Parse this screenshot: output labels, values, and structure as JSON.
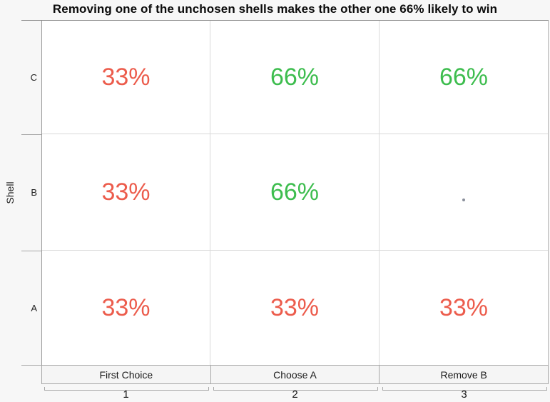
{
  "title": "Removing one of the unchosen shells makes the other one 66% likely to win",
  "y_axis": {
    "title": "Shell",
    "categories": [
      "C",
      "B",
      "A"
    ]
  },
  "x_axis": {
    "ticks": [
      "1",
      "2",
      "3"
    ]
  },
  "columns": [
    {
      "label": "First Choice"
    },
    {
      "label": "Choose A"
    },
    {
      "label": "Remove B"
    }
  ],
  "cells": [
    [
      {
        "label": "33%",
        "state": "lose"
      },
      {
        "label": "66%",
        "state": "win"
      },
      {
        "label": "66%",
        "state": "win"
      }
    ],
    [
      {
        "label": "33%",
        "state": "lose"
      },
      {
        "label": "66%",
        "state": "win"
      },
      {
        "label": "",
        "state": "dot"
      }
    ],
    [
      {
        "label": "33%",
        "state": "lose"
      },
      {
        "label": "33%",
        "state": "lose"
      },
      {
        "label": "33%",
        "state": "lose"
      }
    ]
  ],
  "colors": {
    "win": "#3dbd4e",
    "lose": "#ec5c4c",
    "dot": "#8a8f9b",
    "grid": "#d9d9d9",
    "axis": "#9a9a9a",
    "background": "#f7f7f7"
  },
  "chart_data": {
    "type": "heatmap",
    "title": "Removing one of the unchosen shells makes the other one 66% likely to win",
    "xlabel": "",
    "ylabel": "Shell",
    "rows_top_to_bottom": [
      "C",
      "B",
      "A"
    ],
    "columns": [
      "First Choice",
      "Choose A",
      "Remove B"
    ],
    "x_tick_labels": [
      "1",
      "2",
      "3"
    ],
    "values_percent": [
      [
        33,
        66,
        66
      ],
      [
        33,
        66,
        null
      ],
      [
        33,
        33,
        33
      ]
    ],
    "cell_text": [
      [
        "33%",
        "66%",
        "66%"
      ],
      [
        "33%",
        "66%",
        "·"
      ],
      [
        "33%",
        "33%",
        "33%"
      ]
    ],
    "cell_colors": [
      [
        "red",
        "green",
        "green"
      ],
      [
        "red",
        "green",
        "dot"
      ],
      [
        "red",
        "red",
        "red"
      ]
    ],
    "grid": true,
    "legend": false
  }
}
